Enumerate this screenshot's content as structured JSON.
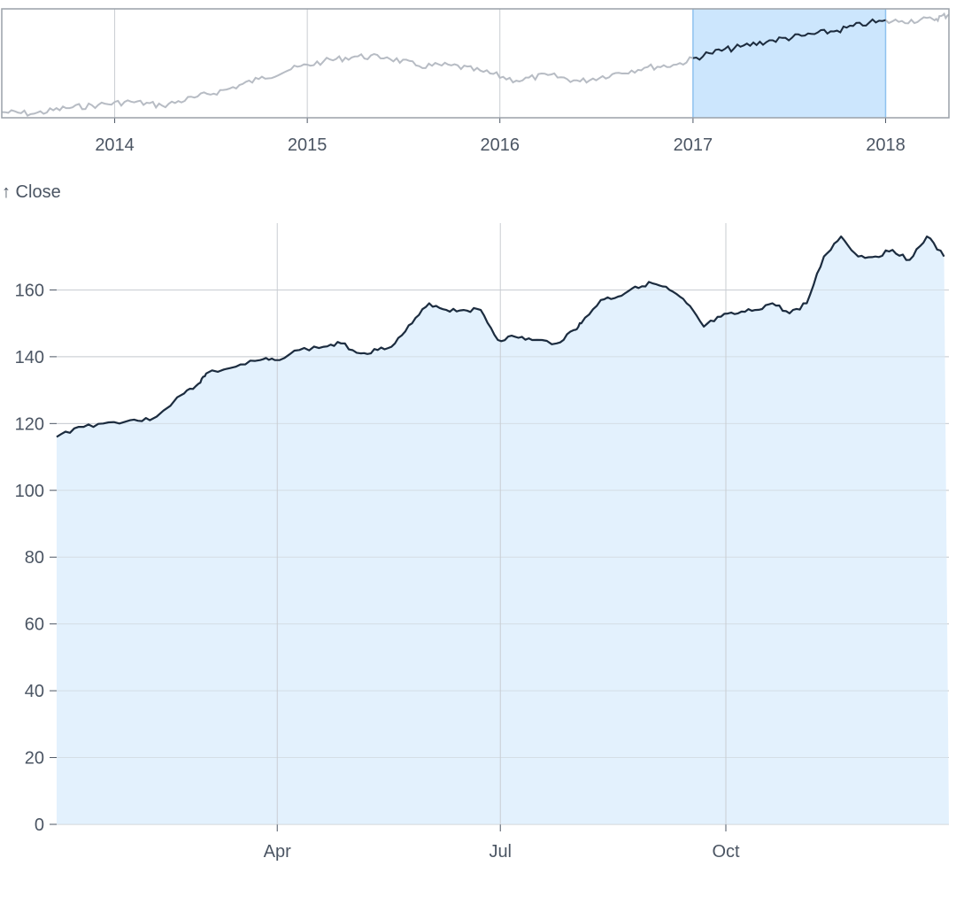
{
  "chart_data": [
    {
      "type": "line",
      "role": "overview-navigator",
      "x_ticks": [
        "2014",
        "2015",
        "2016",
        "2017",
        "2018"
      ],
      "x_range": [
        "2013-06",
        "2018-05"
      ],
      "brush": {
        "start": "2017-01-01",
        "end": "2018-01-01"
      },
      "series": [
        {
          "x": [
            "2013-06",
            "2013-08",
            "2013-10",
            "2013-12",
            "2014-02",
            "2014-04",
            "2014-06",
            "2014-08",
            "2014-10",
            "2014-12",
            "2015-02",
            "2015-04",
            "2015-06",
            "2015-08",
            "2015-10",
            "2015-12",
            "2016-02",
            "2016-04",
            "2016-06",
            "2016-08",
            "2016-10",
            "2016-12",
            "2017-02",
            "2017-04",
            "2017-06",
            "2017-08",
            "2017-10",
            "2017-12",
            "2018-02",
            "2018-04",
            "2018-05"
          ],
          "values": [
            57,
            55,
            62,
            66,
            70,
            65,
            75,
            85,
            98,
            110,
            120,
            126,
            125,
            114,
            115,
            107,
            96,
            103,
            95,
            104,
            112,
            116,
            130,
            138,
            146,
            152,
            158,
            168,
            170,
            172,
            178
          ]
        }
      ],
      "colors": {
        "line": "#b7bcc4",
        "line_selected": "#1c2c3f",
        "brush_fill": "#cce6fd",
        "brush_stroke": "#8fc2ef"
      }
    },
    {
      "type": "area",
      "role": "detail",
      "ylabel": "↑ Close",
      "ylim": [
        0,
        180
      ],
      "y_ticks": [
        0,
        20,
        40,
        60,
        80,
        100,
        120,
        140,
        160
      ],
      "x_ticks": [
        "Apr",
        "Jul",
        "Oct"
      ],
      "x_tick_dates": [
        "2017-04-01",
        "2017-07-01",
        "2017-10-01"
      ],
      "x_range": [
        "2017-01-01",
        "2017-12-31"
      ],
      "grid": true,
      "series": [
        {
          "x": [
            "2017-01-01",
            "2017-01-10",
            "2017-01-20",
            "2017-01-31",
            "2017-02-08",
            "2017-02-22",
            "2017-02-28",
            "2017-03-03",
            "2017-03-15",
            "2017-03-25",
            "2017-03-31",
            "2017-04-10",
            "2017-04-20",
            "2017-04-27",
            "2017-05-05",
            "2017-05-12",
            "2017-05-19",
            "2017-05-26",
            "2017-06-02",
            "2017-06-09",
            "2017-06-16",
            "2017-06-23",
            "2017-06-30",
            "2017-07-07",
            "2017-07-14",
            "2017-07-24",
            "2017-07-31",
            "2017-08-03",
            "2017-08-11",
            "2017-08-18",
            "2017-08-25",
            "2017-09-01",
            "2017-09-08",
            "2017-09-15",
            "2017-09-22",
            "2017-09-29",
            "2017-10-06",
            "2017-10-13",
            "2017-10-20",
            "2017-10-27",
            "2017-11-03",
            "2017-11-10",
            "2017-11-17",
            "2017-11-24",
            "2017-12-01",
            "2017-12-08",
            "2017-12-15",
            "2017-12-22",
            "2017-12-29"
          ],
          "values": [
            116,
            119,
            120,
            121,
            121,
            129,
            132,
            135,
            137,
            139,
            139,
            142,
            143,
            144,
            141,
            142,
            144,
            150,
            156,
            154,
            154,
            154,
            145,
            146,
            145,
            144,
            148,
            150,
            157,
            158,
            161,
            162,
            160,
            156,
            149,
            152,
            153,
            154,
            156,
            153,
            156,
            170,
            176,
            170,
            170,
            172,
            169,
            176,
            170
          ]
        }
      ],
      "colors": {
        "line": "#1c2c3f",
        "area_fill": "#e3f1fd",
        "grid": "#c9cdd2",
        "tick_text": "#4b5563"
      }
    }
  ]
}
